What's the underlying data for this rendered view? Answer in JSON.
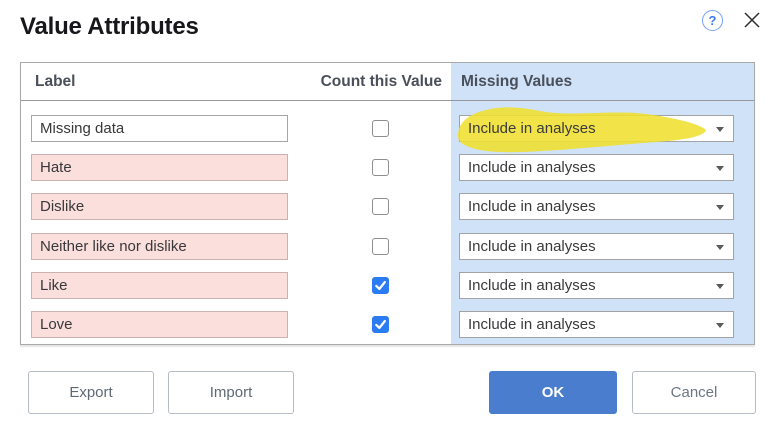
{
  "dialog": {
    "title": "Value Attributes",
    "help_label": "?",
    "table": {
      "columns": {
        "label": "Label",
        "count": "Count this Value",
        "missing": "Missing Values"
      },
      "rows": [
        {
          "label": "Missing data",
          "count_checked": false,
          "missing_value": "Include in analyses",
          "flagged_pink": false,
          "highlighted": true
        },
        {
          "label": "Hate",
          "count_checked": false,
          "missing_value": "Include in analyses",
          "flagged_pink": true,
          "highlighted": false
        },
        {
          "label": "Dislike",
          "count_checked": false,
          "missing_value": "Include in analyses",
          "flagged_pink": true,
          "highlighted": false
        },
        {
          "label": "Neither like nor dislike",
          "count_checked": false,
          "missing_value": "Include in analyses",
          "flagged_pink": true,
          "highlighted": false
        },
        {
          "label": "Like",
          "count_checked": true,
          "missing_value": "Include in analyses",
          "flagged_pink": true,
          "highlighted": false
        },
        {
          "label": "Love",
          "count_checked": true,
          "missing_value": "Include in analyses",
          "flagged_pink": true,
          "highlighted": false
        }
      ]
    },
    "buttons": {
      "export": "Export",
      "import": "Import",
      "ok": "OK",
      "cancel": "Cancel"
    },
    "colors": {
      "ok_blue": "#4a7dcd",
      "checkbox_blue": "#2b7bf3",
      "missing_column_blue": "#cfe2f7",
      "pink_value": "#fbdfdc",
      "highlight_yellow": "#f0df2f",
      "help_icon_blue": "#3f7ced"
    }
  }
}
